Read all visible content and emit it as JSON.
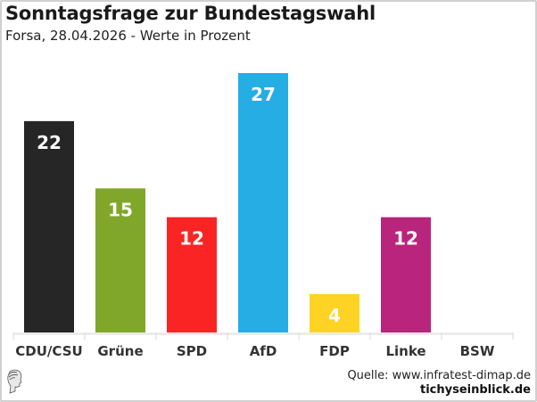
{
  "header": {
    "title": "Sonntagsfrage zur Bundestagswahl",
    "subtitle": "Forsa, 28.04.2026 - Werte in Prozent"
  },
  "footer": {
    "source": "Quelle: www.infratest-dimap.de",
    "brand": "tichyseinblick.de",
    "logo_icon": "classical-head-logo-icon"
  },
  "chart_data": {
    "type": "bar",
    "title": "Sonntagsfrage zur Bundestagswahl",
    "subtitle": "Forsa, 28.04.2026 - Werte in Prozent",
    "xlabel": "",
    "ylabel": "",
    "categories": [
      "CDU/CSU",
      "Grüne",
      "SPD",
      "AfD",
      "FDP",
      "Linke",
      "BSW"
    ],
    "values": [
      22,
      15,
      12,
      27,
      4,
      12,
      null
    ],
    "data_labels": [
      "22",
      "15",
      "12",
      "27",
      "4",
      "12",
      ""
    ],
    "colors": [
      "#262626",
      "#80a72a",
      "#fb2424",
      "#26ade4",
      "#ffd323",
      "#b9257c",
      "#ffffff"
    ],
    "ylim": [
      0,
      27
    ],
    "grid": false,
    "legend": "none"
  }
}
